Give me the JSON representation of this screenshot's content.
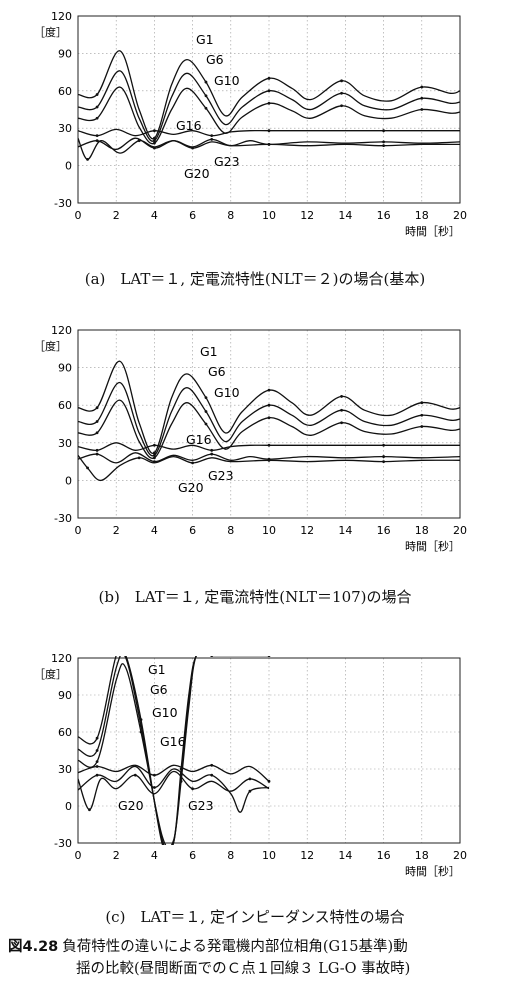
{
  "chart_data": [
    {
      "type": "line",
      "caption": "(a)　LAT＝１, 定電流特性(NLT＝２)の場合(基本)",
      "ylabel": "［度］",
      "xlabel": "時間［秒］",
      "xlim": [
        0,
        20
      ],
      "ylim": [
        -30,
        120
      ],
      "x_ticks": [
        0,
        2,
        4,
        6,
        8,
        10,
        12,
        14,
        16,
        18,
        20
      ],
      "y_ticks": [
        -30,
        0,
        30,
        60,
        90,
        120
      ],
      "grid": true,
      "series": [
        {
          "name": "G1",
          "x": [
            0,
            1,
            2.2,
            3.2,
            4,
            4.9,
            5.7,
            6.7,
            7.7,
            8.6,
            10,
            11.2,
            12.2,
            13.8,
            15,
            16.4,
            18,
            19.5,
            20
          ],
          "y": [
            57,
            57,
            92,
            45,
            22,
            65,
            85,
            67,
            40,
            55,
            70,
            62,
            53,
            68,
            56,
            52,
            63,
            58,
            60
          ]
        },
        {
          "name": "G6",
          "x": [
            0,
            1,
            2.2,
            3.2,
            4,
            4.9,
            5.7,
            6.7,
            7.7,
            8.6,
            10,
            11.2,
            12.2,
            13.8,
            15,
            16.4,
            18,
            19.5,
            20
          ],
          "y": [
            47,
            47,
            76,
            38,
            20,
            55,
            74,
            56,
            33,
            47,
            60,
            53,
            45,
            58,
            48,
            45,
            54,
            50,
            51
          ]
        },
        {
          "name": "G10",
          "x": [
            0,
            1,
            2.2,
            3.2,
            4,
            4.9,
            5.7,
            6.7,
            7.7,
            8.6,
            10,
            11.2,
            12.2,
            13.8,
            15,
            16.4,
            18,
            19.5,
            20
          ],
          "y": [
            38,
            38,
            63,
            31,
            18,
            45,
            62,
            46,
            26,
            39,
            50,
            44,
            38,
            48,
            40,
            38,
            45,
            42,
            43
          ]
        },
        {
          "name": "G16",
          "x": [
            0,
            1,
            2,
            3,
            4,
            5,
            6,
            7,
            8,
            9,
            10,
            12,
            14,
            16,
            18,
            20
          ],
          "y": [
            28,
            24,
            29,
            24,
            28,
            25,
            28,
            24,
            27,
            28,
            28,
            28,
            28,
            28,
            28,
            28
          ]
        },
        {
          "name": "G23",
          "x": [
            0,
            1,
            2,
            3,
            4,
            5,
            6,
            7,
            8,
            9,
            10,
            12,
            14,
            16,
            18,
            20
          ],
          "y": [
            15,
            20,
            13,
            22,
            14,
            20,
            15,
            21,
            16,
            20,
            17,
            19,
            18,
            19,
            18,
            19
          ]
        },
        {
          "name": "G20",
          "x": [
            0,
            0.5,
            1.2,
            2.2,
            3.2,
            4,
            5,
            6,
            7,
            8,
            10,
            12,
            14,
            16,
            18,
            20
          ],
          "y": [
            22,
            5,
            20,
            10,
            20,
            15,
            20,
            14,
            19,
            16,
            17,
            16,
            17,
            16,
            17,
            17
          ]
        }
      ]
    },
    {
      "type": "line",
      "caption": "(b)　LAT＝１, 定電流特性(NLT＝107)の場合",
      "ylabel": "［度］",
      "xlabel": "時間［秒］",
      "xlim": [
        0,
        20
      ],
      "ylim": [
        -30,
        120
      ],
      "x_ticks": [
        0,
        2,
        4,
        6,
        8,
        10,
        12,
        14,
        16,
        18,
        20
      ],
      "y_ticks": [
        -30,
        0,
        30,
        60,
        90,
        120
      ],
      "grid": true,
      "series": [
        {
          "name": "G1",
          "x": [
            0,
            1,
            2.2,
            3.2,
            4,
            4.9,
            5.7,
            6.7,
            7.7,
            8.6,
            10,
            11.2,
            12.2,
            13.8,
            15,
            16.4,
            18,
            19.5,
            20
          ],
          "y": [
            58,
            58,
            95,
            46,
            22,
            66,
            85,
            66,
            38,
            55,
            72,
            62,
            52,
            67,
            56,
            52,
            62,
            57,
            58
          ]
        },
        {
          "name": "G6",
          "x": [
            0,
            1,
            2.2,
            3.2,
            4,
            4.9,
            5.7,
            6.7,
            7.7,
            8.6,
            10,
            11.2,
            12.2,
            13.8,
            15,
            16.4,
            18,
            19.5,
            20
          ],
          "y": [
            47,
            47,
            78,
            38,
            20,
            55,
            74,
            55,
            31,
            47,
            60,
            52,
            44,
            56,
            47,
            44,
            52,
            48,
            49
          ]
        },
        {
          "name": "G10",
          "x": [
            0,
            1,
            2.2,
            3.2,
            4,
            4.9,
            5.7,
            6.7,
            7.7,
            8.6,
            10,
            11.2,
            12.2,
            13.8,
            15,
            16.4,
            18,
            19.5,
            20
          ],
          "y": [
            38,
            38,
            64,
            31,
            18,
            45,
            62,
            45,
            25,
            39,
            50,
            43,
            36,
            46,
            39,
            37,
            43,
            40,
            41
          ]
        },
        {
          "name": "G16",
          "x": [
            0,
            1,
            2,
            3,
            4,
            5,
            6,
            7,
            8,
            9,
            10,
            12,
            14,
            16,
            18,
            20
          ],
          "y": [
            27,
            24,
            30,
            24,
            28,
            25,
            28,
            24,
            27,
            28,
            28,
            28,
            28,
            28,
            28,
            28
          ]
        },
        {
          "name": "G23",
          "x": [
            0,
            1,
            2,
            3,
            4,
            5,
            6,
            7,
            8,
            9,
            10,
            12,
            14,
            16,
            18,
            20
          ],
          "y": [
            17,
            21,
            14,
            22,
            15,
            20,
            16,
            21,
            16,
            19,
            17,
            19,
            18,
            19,
            18,
            19
          ]
        },
        {
          "name": "G20",
          "x": [
            0,
            0.5,
            1.2,
            2.2,
            3.2,
            4,
            5,
            6,
            7,
            8,
            10,
            12,
            14,
            16,
            18,
            20
          ],
          "y": [
            20,
            10,
            0,
            12,
            18,
            14,
            19,
            14,
            18,
            15,
            16,
            15,
            16,
            15,
            16,
            16
          ]
        }
      ]
    },
    {
      "type": "line",
      "caption": "(c)　LAT＝１, 定インピーダンス特性の場合",
      "ylabel": "［度］",
      "xlabel": "時間［秒］",
      "xlim": [
        0,
        20
      ],
      "ylim": [
        -30,
        120
      ],
      "x_ticks": [
        0,
        2,
        4,
        6,
        8,
        10,
        12,
        14,
        16,
        18,
        20
      ],
      "y_ticks": [
        -30,
        0,
        30,
        60,
        90,
        120
      ],
      "grid": true,
      "series": [
        {
          "name": "G1",
          "x": [
            0,
            1,
            2,
            2.5,
            3.3,
            4.4,
            5,
            5.4,
            5.8,
            6.2,
            7,
            8,
            9,
            10
          ],
          "y": [
            56,
            55,
            122,
            122,
            70,
            -30,
            -30,
            30,
            90,
            122,
            122,
            122,
            122,
            122
          ]
        },
        {
          "name": "G6",
          "x": [
            0,
            1,
            2,
            2.5,
            3.3,
            4.4,
            5,
            5.4,
            5.8,
            6.2,
            7,
            8,
            9,
            10
          ],
          "y": [
            46,
            45,
            112,
            120,
            65,
            -27,
            -30,
            25,
            85,
            122,
            122,
            122,
            122,
            122
          ]
        },
        {
          "name": "G10",
          "x": [
            0,
            1,
            2,
            2.5,
            3.3,
            4.4,
            5,
            5.4,
            5.8,
            6.2,
            7,
            8,
            9,
            10
          ],
          "y": [
            37,
            36,
            102,
            112,
            60,
            -24,
            -28,
            20,
            80,
            122,
            122,
            122,
            122,
            122
          ]
        },
        {
          "name": "G16",
          "x": [
            0,
            1,
            2,
            3,
            4,
            5,
            6,
            7,
            8,
            9,
            10
          ],
          "y": [
            27,
            32,
            28,
            33,
            25,
            33,
            28,
            33,
            26,
            32,
            20
          ]
        },
        {
          "name": "G23",
          "x": [
            0,
            1,
            2,
            3,
            4,
            5,
            6,
            7,
            8,
            8.5,
            9,
            10
          ],
          "y": [
            13,
            25,
            20,
            32,
            15,
            30,
            20,
            25,
            10,
            -5,
            12,
            15
          ]
        },
        {
          "name": "G20",
          "x": [
            0,
            0.6,
            1.2,
            2,
            3,
            4,
            5,
            6,
            7,
            8,
            9,
            10
          ],
          "y": [
            22,
            -3,
            22,
            14,
            25,
            10,
            28,
            14,
            20,
            12,
            22,
            14
          ]
        }
      ]
    }
  ],
  "figure": {
    "number": "図4.28",
    "line1": "負荷特性の違いによる発電機内部位相角(G15基準)動",
    "line2": "揺の比較(昼間断面でのＣ点１回線３ LG-O 事故時)"
  }
}
